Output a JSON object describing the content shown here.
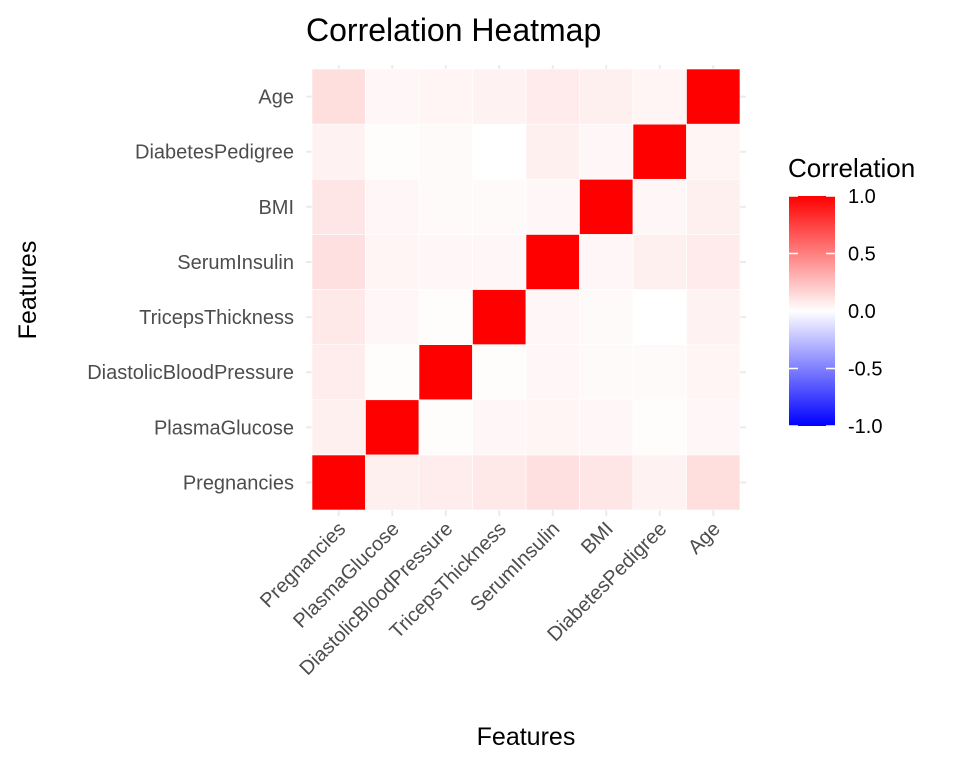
{
  "chart_data": {
    "type": "heatmap",
    "title": "Correlation Heatmap",
    "xlabel": "Features",
    "ylabel": "Features",
    "x_categories": [
      "Pregnancies",
      "PlasmaGlucose",
      "DiastolicBloodPressure",
      "TricepsThickness",
      "SerumInsulin",
      "BMI",
      "DiabetesPedigree",
      "Age"
    ],
    "y_categories": [
      "Pregnancies",
      "PlasmaGlucose",
      "DiastolicBloodPressure",
      "TricepsThickness",
      "SerumInsulin",
      "BMI",
      "DiabetesPedigree",
      "Age"
    ],
    "matrix": [
      [
        1.0,
        0.06,
        0.07,
        0.09,
        0.12,
        0.1,
        0.05,
        0.13
      ],
      [
        0.06,
        1.0,
        0.01,
        0.03,
        0.04,
        0.03,
        0.01,
        0.03
      ],
      [
        0.07,
        0.01,
        1.0,
        0.01,
        0.03,
        0.02,
        0.02,
        0.04
      ],
      [
        0.09,
        0.03,
        0.01,
        1.0,
        0.03,
        0.02,
        0.0,
        0.05
      ],
      [
        0.12,
        0.04,
        0.03,
        0.03,
        1.0,
        0.03,
        0.06,
        0.08
      ],
      [
        0.1,
        0.03,
        0.02,
        0.02,
        0.03,
        1.0,
        0.03,
        0.06
      ],
      [
        0.05,
        0.01,
        0.02,
        0.0,
        0.06,
        0.03,
        1.0,
        0.04
      ],
      [
        0.13,
        0.03,
        0.04,
        0.05,
        0.08,
        0.06,
        0.04,
        1.0
      ]
    ],
    "legend": {
      "title": "Correlation",
      "placement": "right",
      "ticks": [
        "1.0",
        "0.5",
        "0.0",
        "-0.5",
        "-1.0"
      ],
      "low_color": "#0000ff",
      "mid_color": "#ffffff",
      "high_color": "#ff0000",
      "limits": [
        -1,
        1
      ]
    },
    "grid": true
  }
}
